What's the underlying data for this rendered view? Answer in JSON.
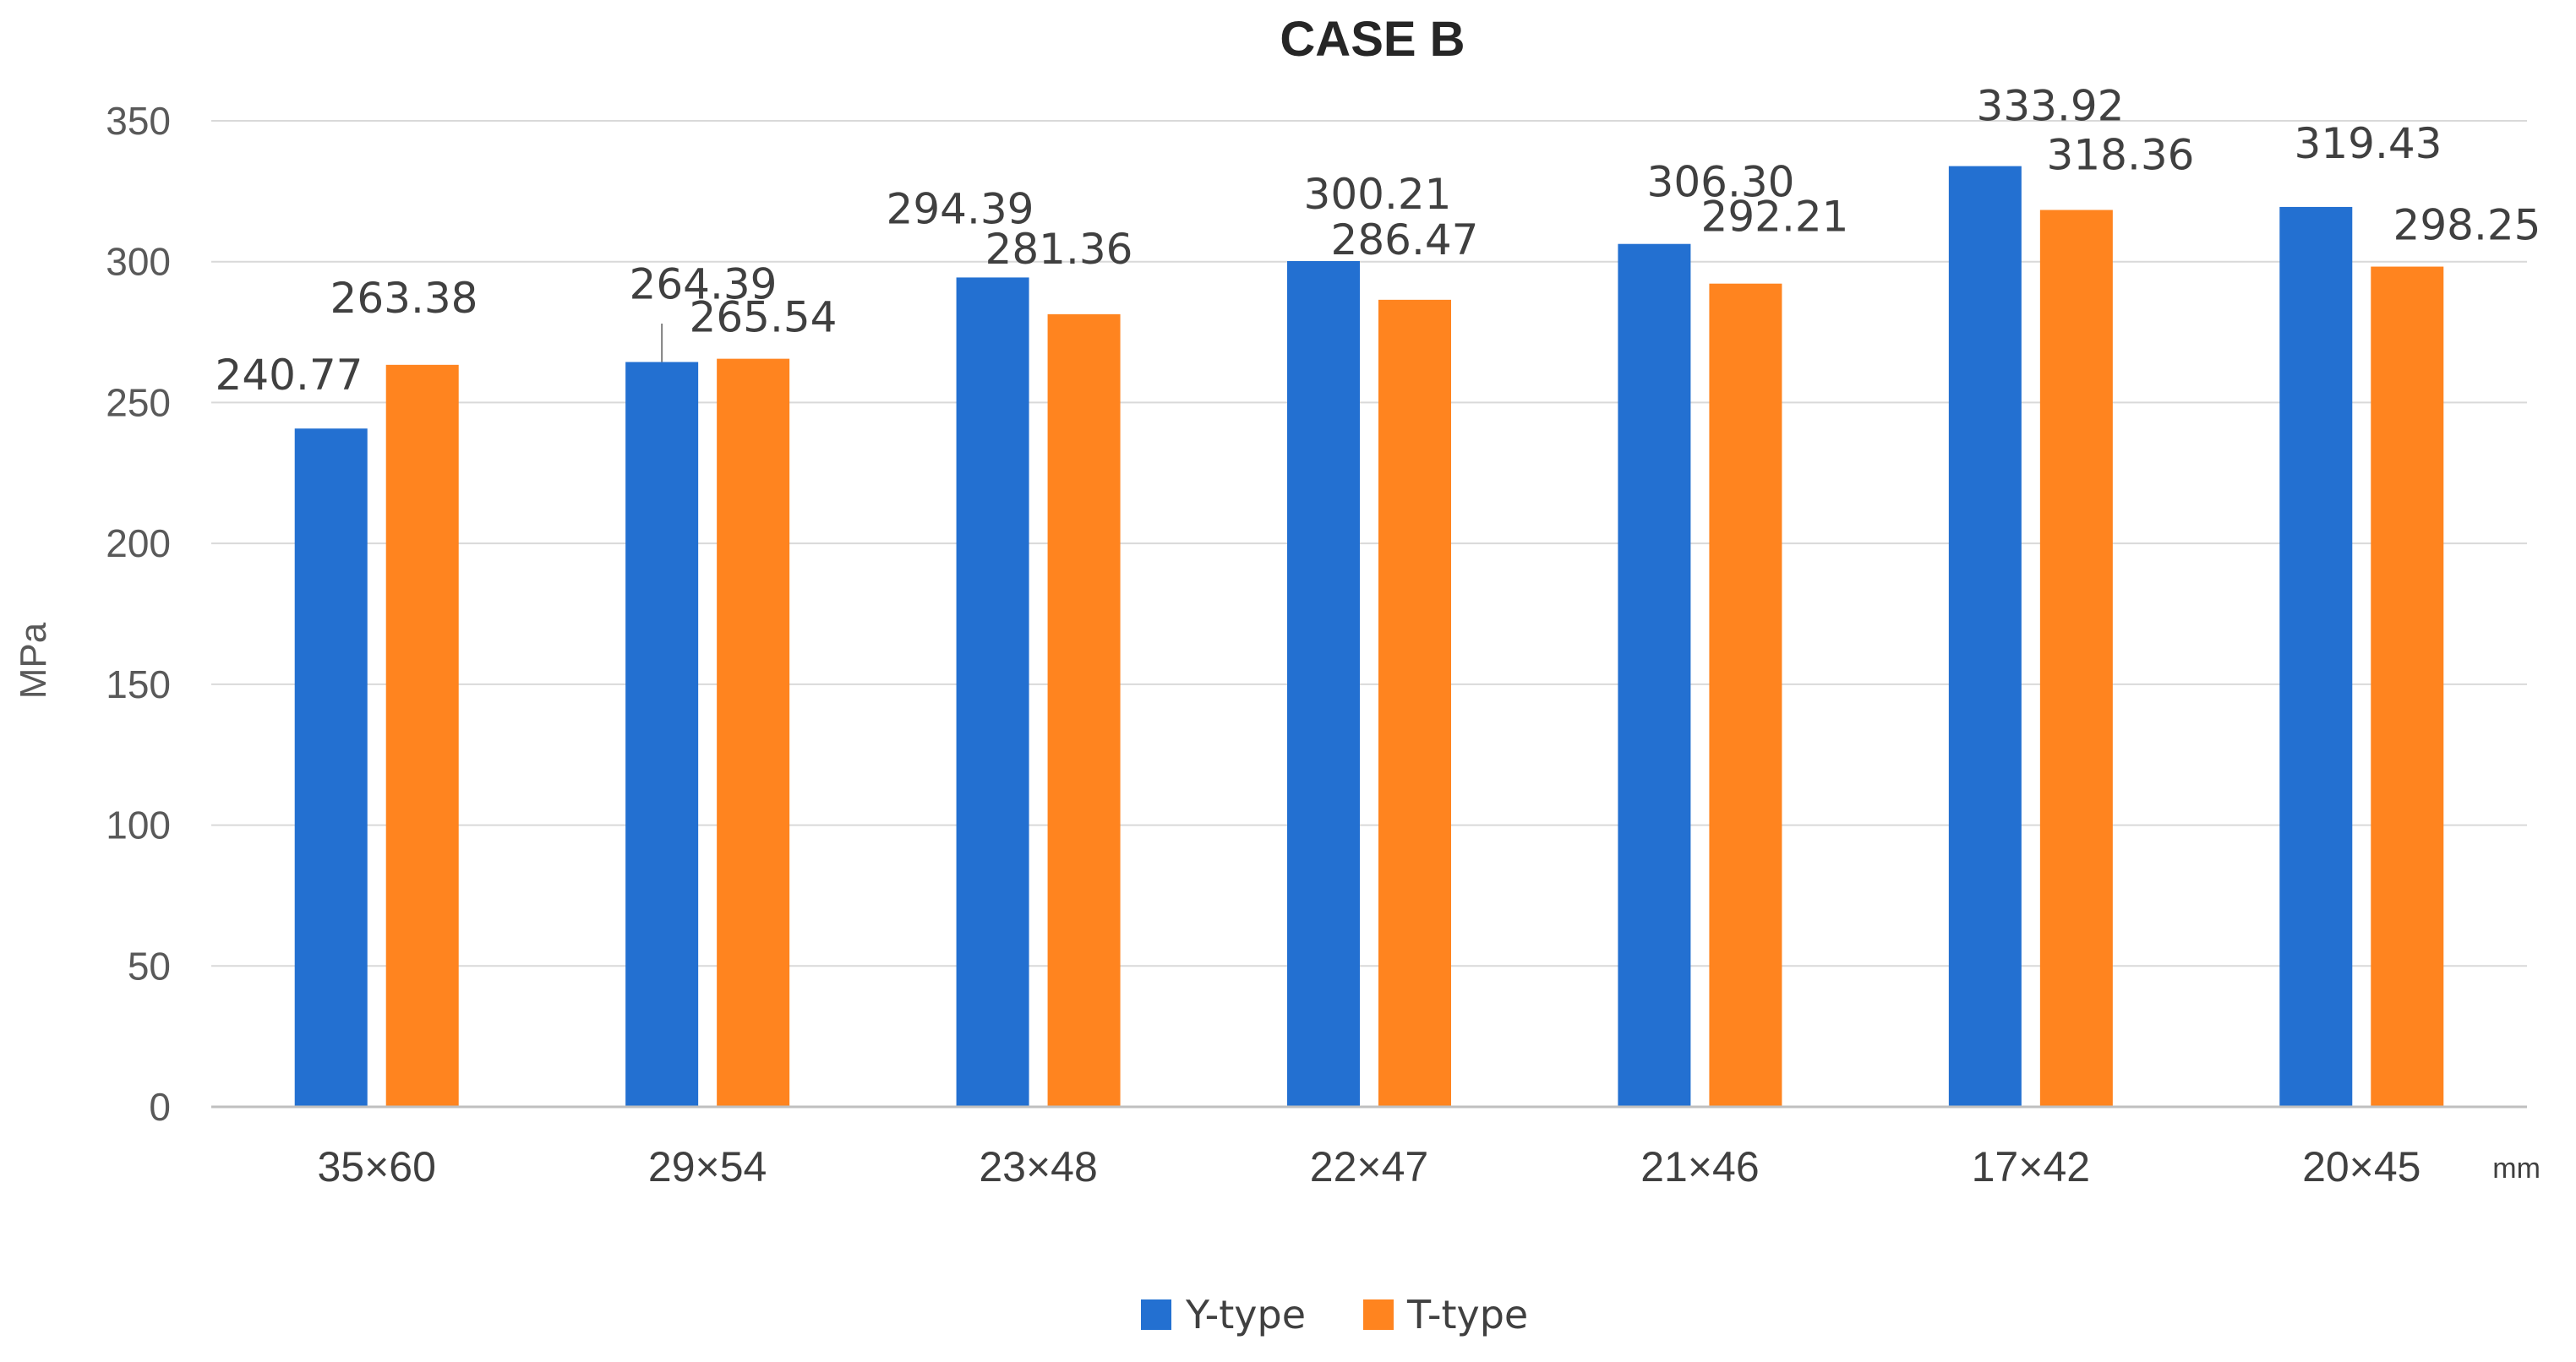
{
  "chart_data": {
    "type": "bar",
    "title": "CASE B",
    "xlabel": "",
    "ylabel": "MPa",
    "x_unit": "mm",
    "categories": [
      "35×60",
      "29×54",
      "23×48",
      "22×47",
      "21×46",
      "17×42",
      "20×45"
    ],
    "series": [
      {
        "name": "Y-type",
        "color": "#2370D1",
        "values": [
          240.77,
          264.39,
          294.39,
          300.21,
          306.3,
          333.92,
          319.43
        ],
        "labels": [
          "240.77",
          "264.39",
          "294.39",
          "300.21",
          "306.30",
          "333.92",
          "319.43"
        ]
      },
      {
        "name": "T-type",
        "color": "#FF841F",
        "values": [
          263.38,
          265.54,
          281.36,
          286.47,
          292.21,
          318.36,
          298.25
        ],
        "labels": [
          "263.38",
          "265.54",
          "281.36",
          "286.47",
          "292.21",
          "318.36",
          "298.25"
        ]
      }
    ],
    "ylim": [
      0,
      350
    ],
    "yticks": [
      "0",
      "50",
      "100",
      "150",
      "200",
      "250",
      "300",
      "350"
    ],
    "grid": true,
    "legend_position": "bottom"
  }
}
